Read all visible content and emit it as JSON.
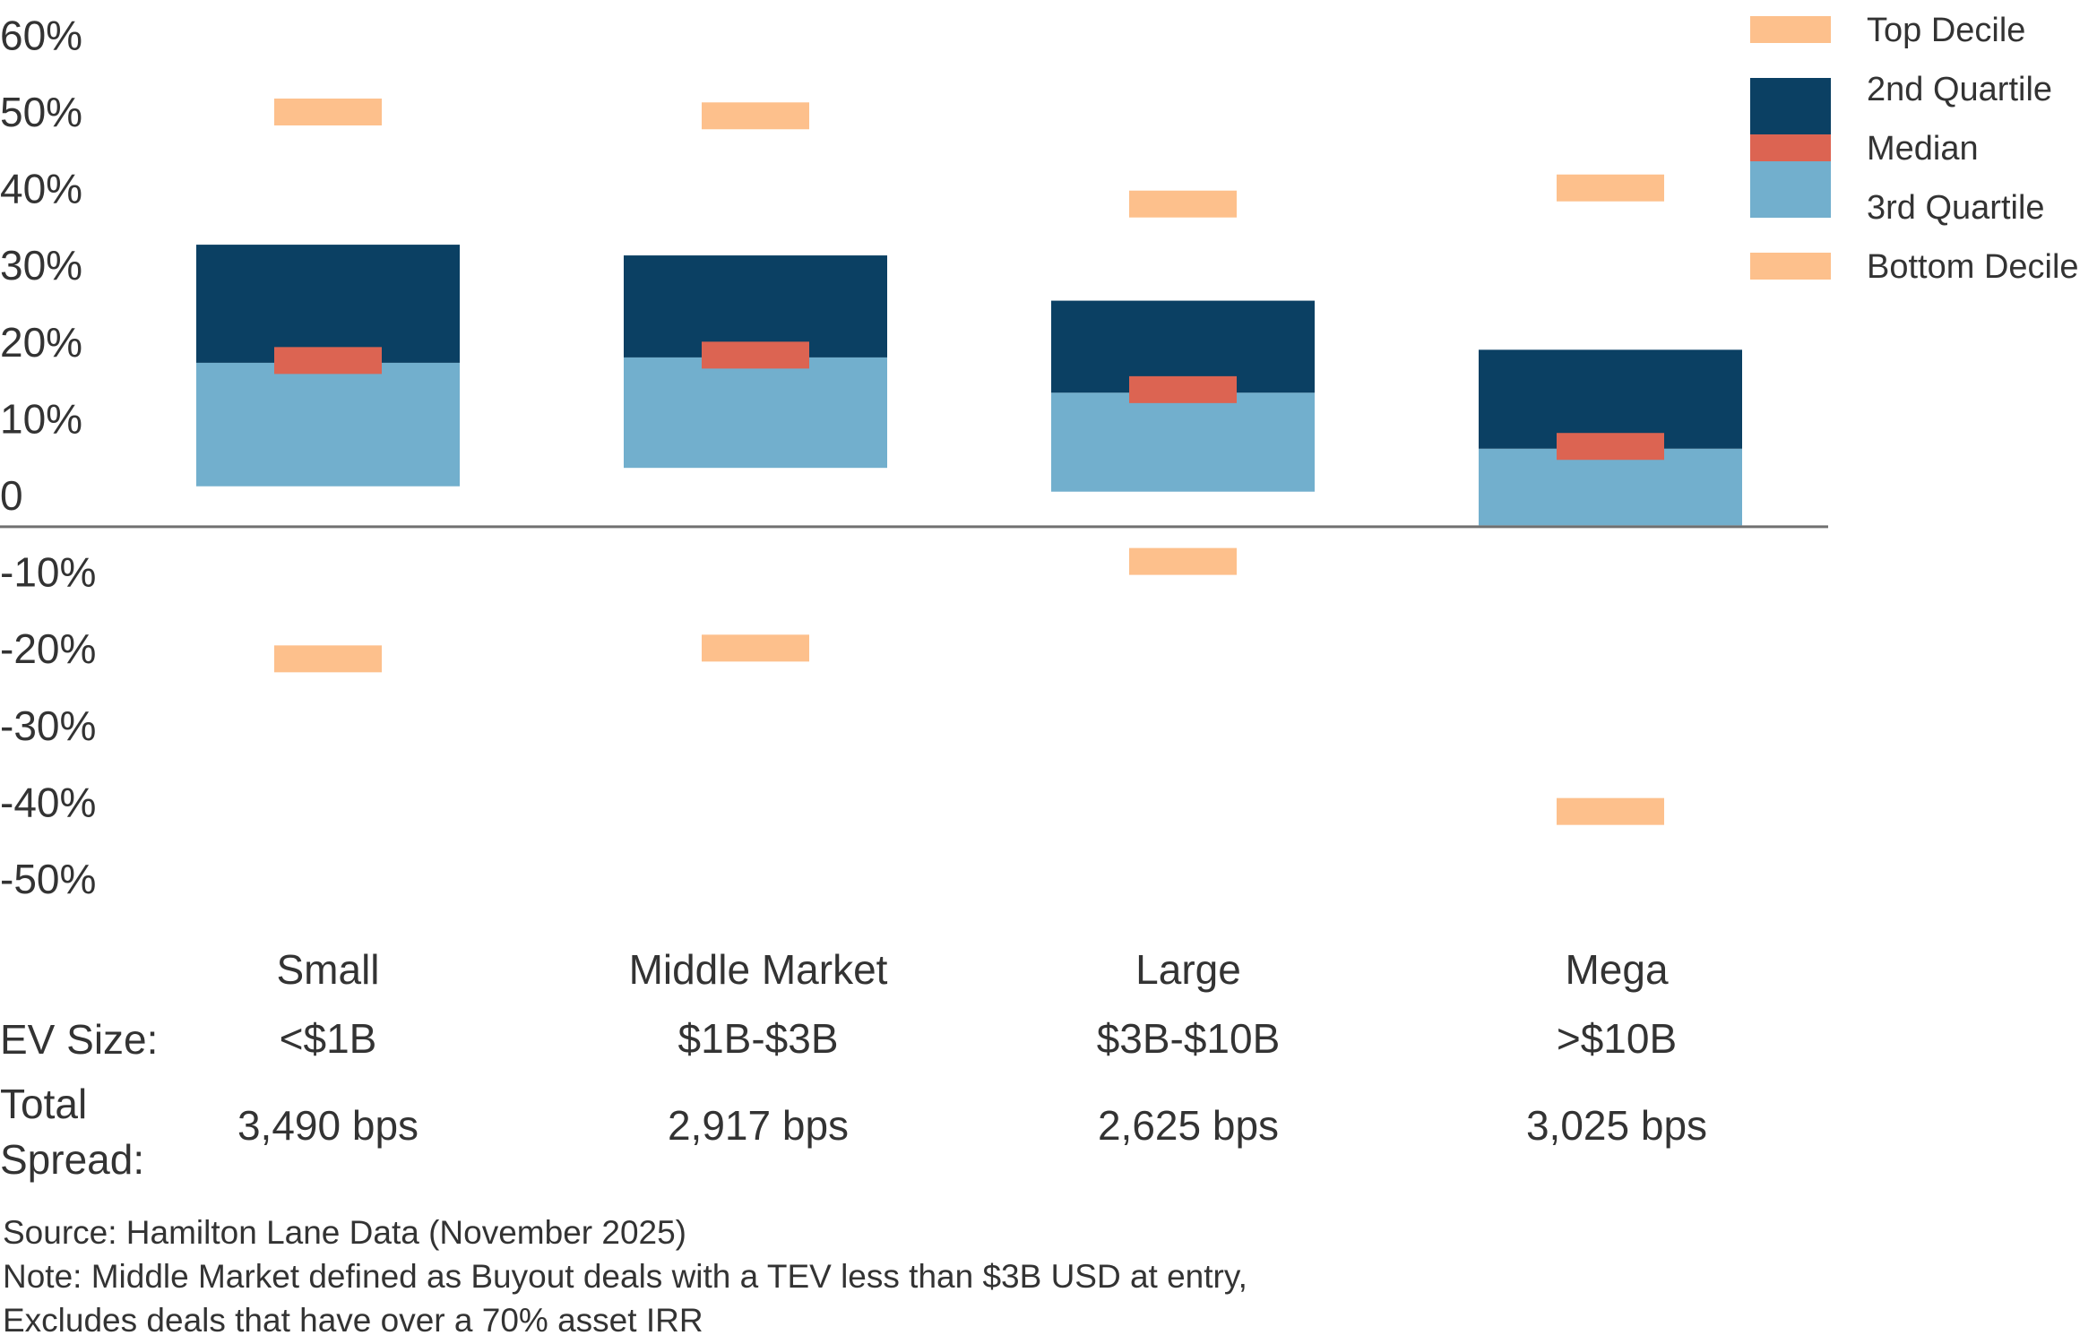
{
  "chart_data": {
    "type": "bar",
    "subtype": "floating-range (box) chart with decile markers",
    "title": "",
    "xlabel": "",
    "ylabel": "",
    "ylim": [
      -50,
      60
    ],
    "yticks": [
      60,
      50,
      40,
      30,
      20,
      10,
      0,
      -10,
      -20,
      -30,
      -40,
      -50
    ],
    "ytick_labels": [
      "60%",
      "50%",
      "40%",
      "30%",
      "20%",
      "10%",
      "0",
      "-10%",
      "-20%",
      "-30%",
      "-40%",
      "-50%"
    ],
    "grid": false,
    "legend_position": "top-right",
    "categories": [
      "Small",
      "Middle Market",
      "Large",
      "Mega"
    ],
    "series": [
      {
        "name": "Top Decile",
        "color": "#FDC08C",
        "values": [
          50.0,
          49.5,
          38.0,
          40.1
        ]
      },
      {
        "name": "2nd Quartile (upper bound)",
        "color": "#0B4063",
        "values": [
          32.7,
          31.3,
          25.4,
          19.0
        ]
      },
      {
        "name": "Median",
        "color": "#DC6452",
        "values": [
          17.6,
          18.3,
          13.8,
          6.4
        ]
      },
      {
        "name": "3rd Quartile (upper bound)",
        "color": "#72AFCD",
        "values": [
          17.3,
          18.0,
          13.4,
          6.1
        ]
      },
      {
        "name": "3rd Quartile (lower bound)",
        "color": "#72AFCD",
        "values": [
          1.2,
          3.6,
          0.5,
          -3.9
        ]
      },
      {
        "name": "Bottom Decile",
        "color": "#FDC08C",
        "values": [
          -21.3,
          -19.9,
          -8.6,
          -41.2
        ]
      }
    ],
    "legend": [
      {
        "label": "Top Decile",
        "color": "#FDC08C"
      },
      {
        "label": "2nd Quartile",
        "color": "#0B4063"
      },
      {
        "label": "Median",
        "color": "#DC6452"
      },
      {
        "label": "3rd Quartile",
        "color": "#72AFCD"
      },
      {
        "label": "Bottom Decile",
        "color": "#FDC08C"
      }
    ],
    "axis_line_value": -3.9
  },
  "table": {
    "ev_size_label": "EV Size:",
    "spread_label_line1": "Total",
    "spread_label_line2": "Spread:",
    "ev_sizes": [
      "<$1B",
      "$1B-$3B",
      "$3B-$10B",
      ">$10B"
    ],
    "total_spreads": [
      "3,490 bps",
      "2,917 bps",
      "2,625 bps",
      "3,025 bps"
    ]
  },
  "footnotes": {
    "source": "Source: Hamilton Lane Data (November 2025)",
    "note_line1": "Note: Middle Market defined as Buyout deals with a TEV less than $3B USD at entry,",
    "note_line2": "Excludes deals that have over a 70% asset IRR"
  },
  "colors": {
    "text": "#333333",
    "axis": "#707070"
  }
}
